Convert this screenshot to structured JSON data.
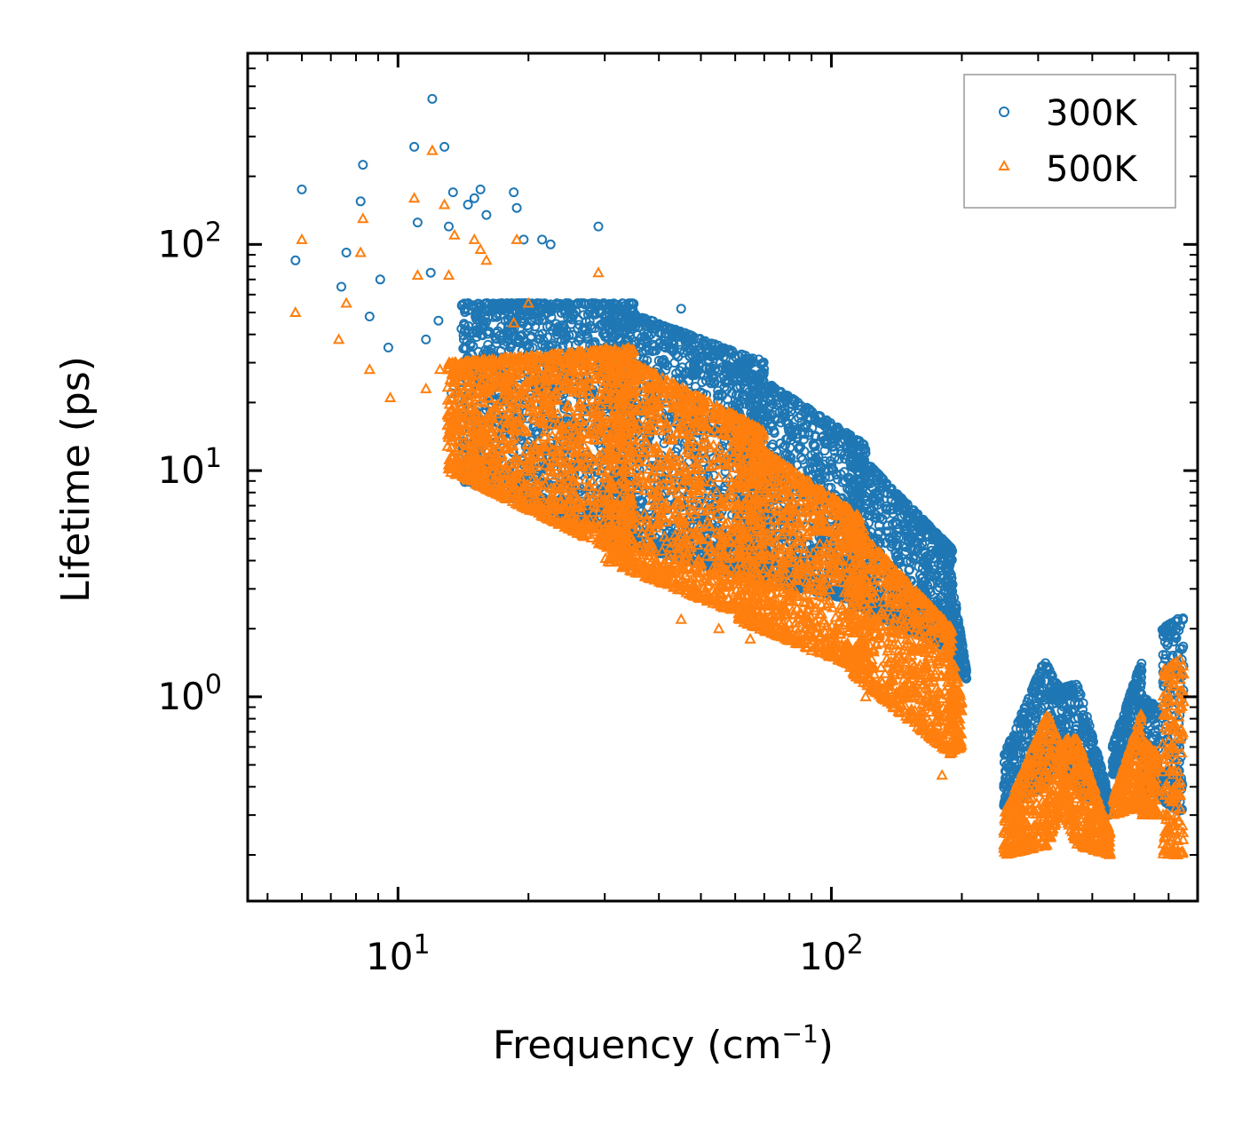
{
  "chart_data": {
    "type": "scatter",
    "title": "",
    "xlabel": "Frequency (cm",
    "xlabel_sup": "−1",
    "xlabel_suffix": ")",
    "ylabel": "Lifetime (ps)",
    "xscale": "log",
    "yscale": "log",
    "xlim": [
      4.5,
      700
    ],
    "ylim": [
      0.125,
      700
    ],
    "x_ticks": [
      {
        "value": 10,
        "base": "10",
        "exp": "1"
      },
      {
        "value": 100,
        "base": "10",
        "exp": "2"
      }
    ],
    "y_ticks": [
      {
        "value": 1,
        "base": "10",
        "exp": "0"
      },
      {
        "value": 10,
        "base": "10",
        "exp": "1"
      },
      {
        "value": 100,
        "base": "10",
        "exp": "2"
      }
    ],
    "legend_position": "top-right",
    "series": [
      {
        "name": "300K",
        "marker": "circle",
        "color": "#1f77b4",
        "sample_points": [
          [
            5.8,
            85
          ],
          [
            6.0,
            175
          ],
          [
            7.4,
            65
          ],
          [
            7.6,
            92
          ],
          [
            8.2,
            155
          ],
          [
            8.3,
            225
          ],
          [
            8.6,
            48
          ],
          [
            9.1,
            70
          ],
          [
            9.5,
            35
          ],
          [
            10.9,
            270
          ],
          [
            11.1,
            125
          ],
          [
            11.6,
            38
          ],
          [
            11.9,
            75
          ],
          [
            12.0,
            440
          ],
          [
            12.4,
            46
          ],
          [
            12.8,
            270
          ],
          [
            13.1,
            120
          ],
          [
            13.3,
            22
          ],
          [
            13.4,
            170
          ],
          [
            14.5,
            150
          ],
          [
            15.0,
            160
          ],
          [
            15.5,
            175
          ],
          [
            16.0,
            135
          ],
          [
            18.5,
            170
          ],
          [
            18.8,
            145
          ],
          [
            19.5,
            105
          ],
          [
            21.5,
            105
          ],
          [
            22.5,
            100
          ],
          [
            29,
            120
          ],
          [
            35,
            30
          ],
          [
            45,
            52
          ],
          [
            55,
            28
          ],
          [
            68,
            31
          ],
          [
            80,
            19
          ],
          [
            95,
            14
          ],
          [
            120,
            10
          ],
          [
            150,
            6
          ],
          [
            180,
            4
          ]
        ],
        "bands": [
          {
            "x": [
              14,
              35
            ],
            "upper": [
              55,
              55
            ],
            "lower": [
              9,
              5
            ]
          },
          {
            "x": [
              30,
              70
            ],
            "upper": [
              55,
              30
            ],
            "lower": [
              5,
              3.2
            ]
          },
          {
            "x": [
              60,
              120
            ],
            "upper": [
              30,
              13
            ],
            "lower": [
              3.5,
              2.6
            ]
          },
          {
            "x": [
              110,
              190
            ],
            "upper": [
              13,
              4.5
            ],
            "lower": [
              2.6,
              1.6
            ]
          },
          {
            "x": [
              185,
              205
            ],
            "upper": [
              4.5,
              1.3
            ],
            "lower": [
              1.6,
              1.2
            ]
          },
          {
            "x": [
              250,
              310
            ],
            "upper": [
              0.55,
              1.45
            ],
            "lower": [
              0.33,
              0.4
            ]
          },
          {
            "x": [
              310,
              345
            ],
            "upper": [
              1.45,
              1.0
            ],
            "lower": [
              0.4,
              0.6
            ]
          },
          {
            "x": [
              345,
              370
            ],
            "upper": [
              1.1,
              1.15
            ],
            "lower": [
              0.45,
              0.4
            ]
          },
          {
            "x": [
              370,
              440
            ],
            "upper": [
              1.15,
              0.35
            ],
            "lower": [
              0.4,
              0.3
            ]
          },
          {
            "x": [
              445,
              520
            ],
            "upper": [
              0.6,
              1.45
            ],
            "lower": [
              0.45,
              0.6
            ]
          },
          {
            "x": [
              520,
              570
            ],
            "upper": [
              1.0,
              0.9
            ],
            "lower": [
              0.35,
              0.4
            ]
          },
          {
            "x": [
              580,
              650
            ],
            "upper": [
              2.0,
              2.3
            ],
            "lower": [
              0.35,
              0.3
            ]
          }
        ]
      },
      {
        "name": "500K",
        "marker": "triangle",
        "color": "#ff7f0e",
        "sample_points": [
          [
            5.8,
            50
          ],
          [
            6.0,
            105
          ],
          [
            7.3,
            38
          ],
          [
            7.6,
            55
          ],
          [
            8.2,
            92
          ],
          [
            8.3,
            130
          ],
          [
            8.6,
            28
          ],
          [
            9.6,
            21
          ],
          [
            10.9,
            160
          ],
          [
            11.1,
            73
          ],
          [
            11.6,
            23
          ],
          [
            12.0,
            260
          ],
          [
            12.5,
            28
          ],
          [
            12.8,
            150
          ],
          [
            13.1,
            73
          ],
          [
            13.3,
            15
          ],
          [
            13.5,
            110
          ],
          [
            15.0,
            105
          ],
          [
            15.5,
            95
          ],
          [
            16.0,
            85
          ],
          [
            17.0,
            9.5
          ],
          [
            18.5,
            45
          ],
          [
            18.8,
            105
          ],
          [
            20,
            55
          ],
          [
            29,
            75
          ],
          [
            35,
            4.5
          ],
          [
            45,
            2.2
          ],
          [
            55,
            2.0
          ],
          [
            65,
            1.8
          ],
          [
            90,
            1.6
          ],
          [
            120,
            1.0
          ],
          [
            150,
            0.8
          ],
          [
            180,
            0.45
          ]
        ],
        "bands": [
          {
            "x": [
              13,
              35
            ],
            "upper": [
              30,
              35
            ],
            "lower": [
              10,
              4
            ]
          },
          {
            "x": [
              30,
              70
            ],
            "upper": [
              35,
              15
            ],
            "lower": [
              4,
              2.1
            ]
          },
          {
            "x": [
              60,
              120
            ],
            "upper": [
              15,
              6
            ],
            "lower": [
              2.2,
              1.3
            ]
          },
          {
            "x": [
              110,
              190
            ],
            "upper": [
              6,
              2.0
            ],
            "lower": [
              1.3,
              0.55
            ]
          },
          {
            "x": [
              185,
              200
            ],
            "upper": [
              2.0,
              0.95
            ],
            "lower": [
              0.55,
              0.6
            ]
          },
          {
            "x": [
              250,
              315
            ],
            "upper": [
              0.3,
              0.85
            ],
            "lower": [
              0.2,
              0.22
            ]
          },
          {
            "x": [
              315,
              345
            ],
            "upper": [
              0.85,
              0.55
            ],
            "lower": [
              0.22,
              0.35
            ]
          },
          {
            "x": [
              345,
              370
            ],
            "upper": [
              0.65,
              0.65
            ],
            "lower": [
              0.3,
              0.22
            ]
          },
          {
            "x": [
              370,
              440
            ],
            "upper": [
              0.65,
              0.25
            ],
            "lower": [
              0.22,
              0.2
            ]
          },
          {
            "x": [
              445,
              520
            ],
            "upper": [
              0.35,
              0.85
            ],
            "lower": [
              0.3,
              0.33
            ]
          },
          {
            "x": [
              520,
              570
            ],
            "upper": [
              0.65,
              0.55
            ],
            "lower": [
              0.3,
              0.3
            ]
          },
          {
            "x": [
              580,
              650
            ],
            "upper": [
              1.3,
              1.5
            ],
            "lower": [
              0.2,
              0.2
            ]
          }
        ]
      }
    ]
  }
}
